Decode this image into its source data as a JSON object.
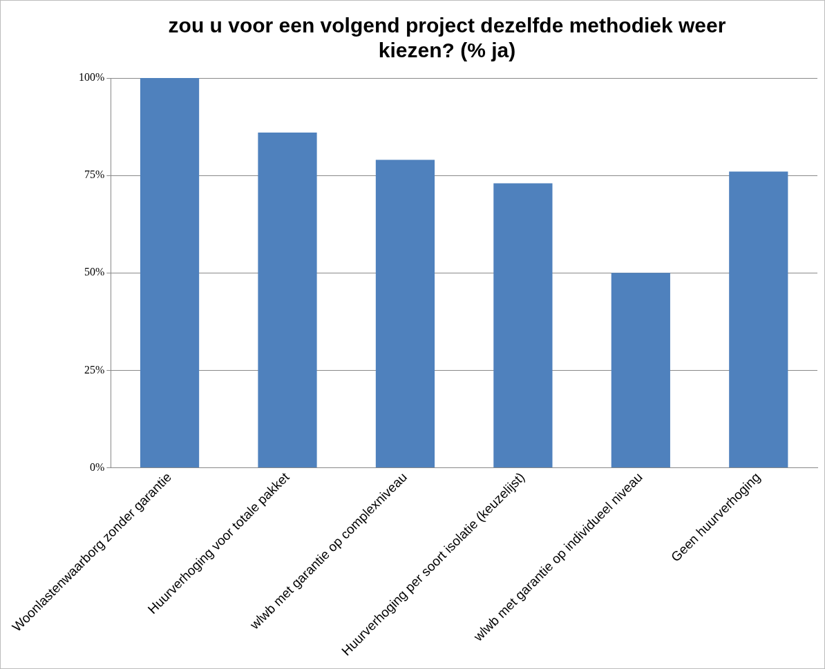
{
  "chart_data": {
    "type": "bar",
    "title": "zou u voor een volgend project dezelfde methodiek weer kiezen? (% ja)",
    "categories": [
      "Woonlastenwaarborg zonder garantie",
      "Huurverhoging voor totale pakket",
      "wlwb met garantie op complexniveau",
      "Huurverhoging per soort isolatie (keuzelijst)",
      "wlwb met garantie op individueel niveau",
      "Geen huurverhoging"
    ],
    "values": [
      100,
      86,
      79,
      73,
      50,
      76
    ],
    "color": "#4f81bd",
    "ylim": [
      0,
      100
    ],
    "yticks": [
      {
        "value": 0,
        "label": "0%"
      },
      {
        "value": 25,
        "label": "25%"
      },
      {
        "value": 50,
        "label": "50%"
      },
      {
        "value": 75,
        "label": "75%"
      },
      {
        "value": 100,
        "label": "100%"
      }
    ],
    "grid": "y",
    "legend": false
  }
}
